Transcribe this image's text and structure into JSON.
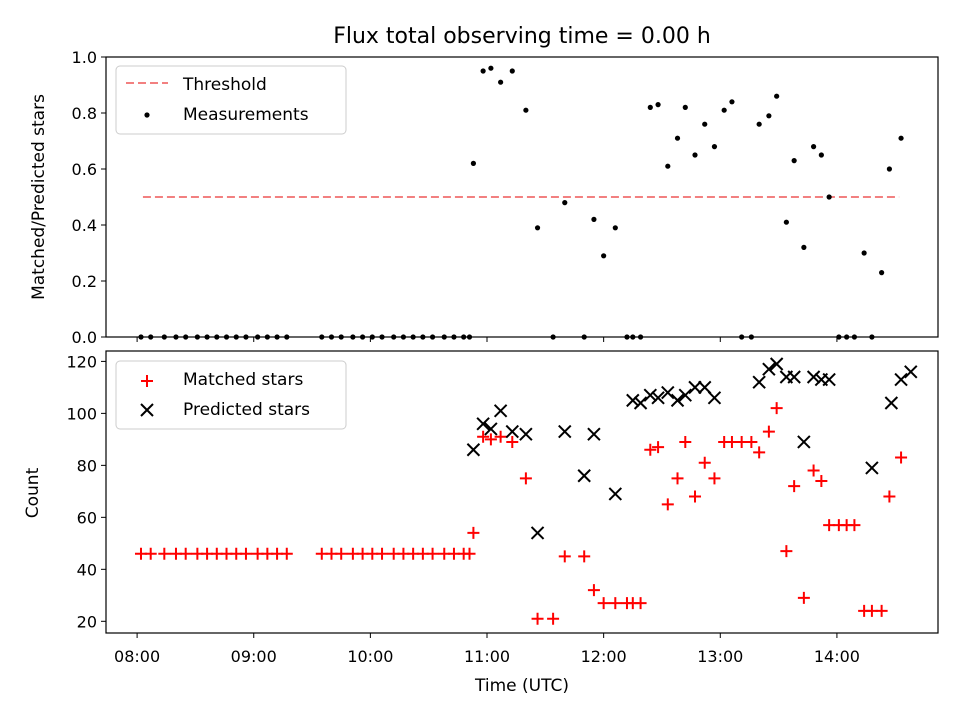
{
  "chart_data": [
    {
      "type": "scatter",
      "title": "Flux total observing time = 0.00 h",
      "xlabel": "",
      "ylabel": "Matched/Predicted stars",
      "xlim": [
        "07:44",
        "14:52"
      ],
      "ylim": [
        0.0,
        1.0
      ],
      "y_ticks": [
        "0.0",
        "0.2",
        "0.4",
        "0.6",
        "0.8",
        "1.0"
      ],
      "legend": {
        "position": "top-left"
      },
      "threshold": {
        "name": "Threshold",
        "value": 0.5,
        "x_start": "08:03",
        "x_end": "14:32",
        "color": "#f28080",
        "style": "dashed"
      },
      "series": [
        {
          "name": "Measurements",
          "color": "#000000",
          "marker": "dot",
          "x": [
            "08:02",
            "08:07",
            "08:14",
            "08:20",
            "08:25",
            "08:31",
            "08:36",
            "08:41",
            "08:46",
            "08:51",
            "08:56",
            "09:02",
            "09:07",
            "09:12",
            "09:17",
            "09:35",
            "09:40",
            "09:45",
            "09:51",
            "09:56",
            "10:01",
            "10:06",
            "10:12",
            "10:17",
            "10:22",
            "10:27",
            "10:32",
            "10:38",
            "10:43",
            "10:48",
            "10:51",
            "10:53",
            "10:58",
            "11:02",
            "11:07",
            "11:13",
            "11:20",
            "11:26",
            "11:34",
            "11:40",
            "11:50",
            "11:55",
            "12:00",
            "12:06",
            "12:12",
            "12:15",
            "12:19",
            "12:24",
            "12:28",
            "12:33",
            "12:38",
            "12:42",
            "12:47",
            "12:52",
            "12:57",
            "13:02",
            "13:06",
            "13:11",
            "13:16",
            "13:20",
            "13:25",
            "13:29",
            "13:34",
            "13:38",
            "13:43",
            "13:48",
            "13:52",
            "13:56",
            "14:01",
            "14:05",
            "14:09",
            "14:14",
            "14:18",
            "14:23",
            "14:27",
            "14:33"
          ],
          "y": [
            0,
            0,
            0,
            0,
            0,
            0,
            0,
            0,
            0,
            0,
            0,
            0,
            0,
            0,
            0,
            0,
            0,
            0,
            0,
            0,
            0,
            0,
            0,
            0,
            0,
            0,
            0,
            0,
            0,
            0,
            0,
            0.62,
            0.95,
            0.96,
            0.91,
            0.95,
            0.81,
            0.39,
            0,
            0.48,
            0,
            0.42,
            0.29,
            0.39,
            0,
            0,
            0,
            0.82,
            0.83,
            0.61,
            0.71,
            0.82,
            0.65,
            0.76,
            0.68,
            0.81,
            0.84,
            0,
            0,
            0.76,
            0.79,
            0.86,
            0.41,
            0.63,
            0.32,
            0.68,
            0.65,
            0.5,
            0,
            0,
            0,
            0.3,
            0,
            0.23,
            0.6,
            0.71
          ]
        }
      ]
    },
    {
      "type": "scatter",
      "title": "",
      "xlabel": "Time (UTC)",
      "ylabel": "Count",
      "xlim": [
        "07:44",
        "14:52"
      ],
      "ylim": [
        15.5,
        124
      ],
      "x_ticks": [
        "08:00",
        "09:00",
        "10:00",
        "11:00",
        "12:00",
        "13:00",
        "14:00"
      ],
      "y_ticks": [
        "20",
        "40",
        "60",
        "80",
        "100",
        "120"
      ],
      "legend": {
        "position": "top-left"
      },
      "series": [
        {
          "name": "Matched stars",
          "color": "#ff0000",
          "marker": "plus",
          "x": [
            "08:02",
            "08:07",
            "08:14",
            "08:20",
            "08:25",
            "08:31",
            "08:36",
            "08:41",
            "08:46",
            "08:51",
            "08:56",
            "09:02",
            "09:07",
            "09:12",
            "09:17",
            "09:35",
            "09:40",
            "09:45",
            "09:51",
            "09:56",
            "10:01",
            "10:06",
            "10:12",
            "10:17",
            "10:22",
            "10:27",
            "10:32",
            "10:38",
            "10:43",
            "10:48",
            "10:51",
            "10:53",
            "10:58",
            "11:02",
            "11:07",
            "11:13",
            "11:20",
            "11:26",
            "11:34",
            "11:40",
            "11:50",
            "11:55",
            "12:00",
            "12:06",
            "12:12",
            "12:15",
            "12:19",
            "12:24",
            "12:28",
            "12:33",
            "12:38",
            "12:42",
            "12:47",
            "12:52",
            "12:57",
            "13:02",
            "13:06",
            "13:11",
            "13:16",
            "13:20",
            "13:25",
            "13:29",
            "13:34",
            "13:38",
            "13:43",
            "13:48",
            "13:52",
            "13:56",
            "14:01",
            "14:05",
            "14:09",
            "14:14",
            "14:18",
            "14:23",
            "14:27",
            "14:33"
          ],
          "y": [
            46,
            46,
            46,
            46,
            46,
            46,
            46,
            46,
            46,
            46,
            46,
            46,
            46,
            46,
            46,
            46,
            46,
            46,
            46,
            46,
            46,
            46,
            46,
            46,
            46,
            46,
            46,
            46,
            46,
            46,
            46,
            54,
            91,
            90,
            91,
            89,
            75,
            21,
            21,
            45,
            45,
            32,
            27,
            27,
            27,
            27,
            27,
            86,
            87,
            65,
            75,
            89,
            68,
            81,
            75,
            89,
            89,
            89,
            89,
            85,
            93,
            102,
            47,
            72,
            29,
            78,
            74,
            57,
            57,
            57,
            57,
            24,
            24,
            24,
            68,
            83
          ]
        },
        {
          "name": "Predicted stars",
          "color": "#000000",
          "marker": "x",
          "x": [
            "10:53",
            "10:58",
            "11:02",
            "11:07",
            "11:13",
            "11:20",
            "11:26",
            "11:40",
            "11:50",
            "11:55",
            "12:06",
            "12:15",
            "12:19",
            "12:24",
            "12:28",
            "12:33",
            "12:38",
            "12:42",
            "12:47",
            "12:52",
            "12:57",
            "13:20",
            "13:25",
            "13:29",
            "13:34",
            "13:38",
            "13:43",
            "13:48",
            "13:52",
            "13:56",
            "14:18",
            "14:28",
            "14:33",
            "14:38"
          ],
          "y": [
            86,
            96,
            94,
            101,
            93,
            92,
            54,
            93,
            76,
            92,
            69,
            105,
            104,
            107,
            106,
            108,
            105,
            107,
            110,
            110,
            106,
            112,
            117,
            119,
            114,
            114,
            89,
            114,
            113,
            113,
            79,
            104,
            113,
            116
          ]
        }
      ]
    }
  ]
}
